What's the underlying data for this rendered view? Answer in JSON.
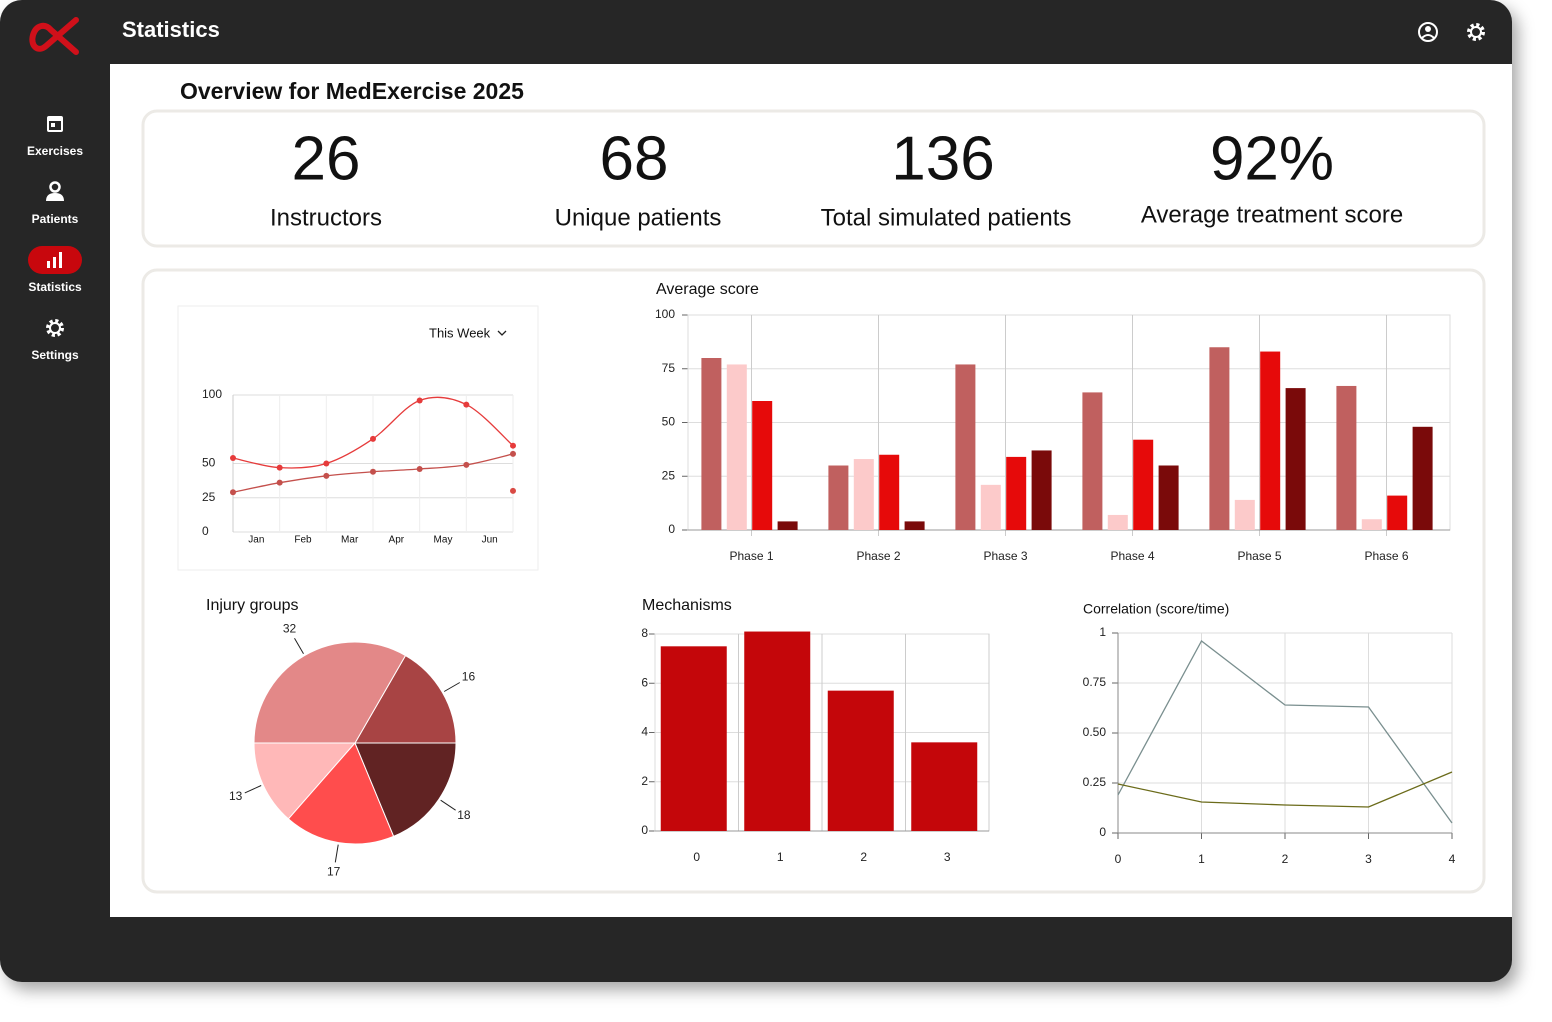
{
  "app": {
    "title": "Statistics"
  },
  "nav": [
    {
      "label": "Exercises"
    },
    {
      "label": "Patients"
    },
    {
      "label": "Statistics",
      "active": true
    },
    {
      "label": "Settings"
    }
  ],
  "overview": {
    "title": "Overview for MedExercise 2025",
    "stats": [
      {
        "value": 26,
        "label": "Instructors"
      },
      {
        "value": 68,
        "label": "Unique patients"
      },
      {
        "value": 136,
        "label": "Total simulated patients"
      },
      {
        "value": "92%",
        "label": "Average treatment score"
      }
    ]
  },
  "chart_data": [
    {
      "type": "line",
      "filter": "This Week",
      "smooth": true,
      "markers": true,
      "categories": [
        "Jan",
        "Feb",
        "Mar",
        "Apr",
        "May",
        "Jun",
        null
      ],
      "ylim": [
        0,
        100
      ],
      "yticks": [
        0,
        25,
        50,
        100
      ],
      "grid": true,
      "series": [
        {
          "color": "#e63b3b",
          "values": [
            54,
            47,
            50,
            68,
            96,
            93,
            63
          ]
        },
        {
          "color": "#c4504c",
          "values": [
            29,
            36,
            41,
            44,
            46,
            49,
            57
          ]
        },
        {
          "color": "#d94a44",
          "values": [
            null,
            null,
            null,
            null,
            null,
            null,
            30
          ]
        }
      ]
    },
    {
      "type": "bar",
      "title": "Average score",
      "categories": [
        "Phase 1",
        "Phase 2",
        "Phase 3",
        "Phase 4",
        "Phase 5",
        "Phase 6"
      ],
      "ylim": [
        0,
        100
      ],
      "yticks": [
        0,
        25,
        50,
        75,
        100
      ],
      "grid": true,
      "series": [
        {
          "color": "#c0605f",
          "values": [
            80,
            30,
            77,
            64,
            85,
            67
          ]
        },
        {
          "color": "#fccaca",
          "values": [
            77,
            33,
            21,
            7,
            14,
            5
          ]
        },
        {
          "color": "#e60a0a",
          "values": [
            60,
            35,
            34,
            42,
            83,
            16
          ]
        },
        {
          "color": "#7a0a0a",
          "values": [
            4,
            4,
            37,
            30,
            66,
            48
          ]
        }
      ]
    },
    {
      "type": "pie",
      "title": "Injury groups",
      "values": [
        16,
        32,
        13,
        17,
        18
      ],
      "colors": [
        "#a84444",
        "#e38888",
        "#ffb8b8",
        "#ff4d4d",
        "#612323"
      ]
    },
    {
      "type": "bar",
      "title": "Mechanisms",
      "categories": [
        "0",
        "1",
        "2",
        "3"
      ],
      "values": [
        7.5,
        8.1,
        5.7,
        3.6
      ],
      "color": "#c4060a",
      "ylim": [
        0,
        8
      ],
      "yticks": [
        0,
        2,
        4,
        6,
        8
      ],
      "grid": true
    },
    {
      "type": "line",
      "title": "Correlation (score/time)",
      "x": [
        0,
        1,
        2,
        3,
        4
      ],
      "xlim": [
        0,
        4
      ],
      "xticks": [
        0,
        1,
        2,
        3,
        4
      ],
      "ylim": [
        0,
        1
      ],
      "yticks": [
        0,
        0.25,
        {
          "value": 0.5,
          "label": "0.50"
        },
        0.75,
        1
      ],
      "grid": true,
      "series": [
        {
          "color": "#7a8f8f",
          "values": [
            0.19,
            0.96,
            0.64,
            0.63,
            0.05
          ]
        },
        {
          "color": "#6b6b1a",
          "values": [
            0.245,
            0.155,
            0.14,
            0.13,
            0.305
          ]
        }
      ]
    }
  ]
}
